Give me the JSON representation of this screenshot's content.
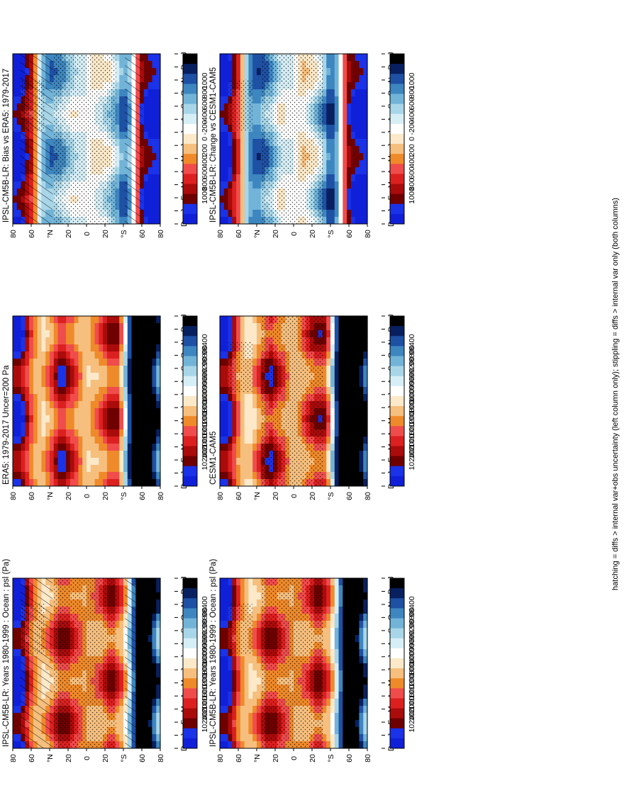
{
  "footnote": "hatching = diffs > internal var+obs uncertainty (left column only); stippling = diffs > internal var only (both columns)",
  "legend_sets": {
    "abs": {
      "labels": [
        "102400",
        "102000",
        "101600",
        "101200",
        "100800",
        "100400",
        "100000",
        "99600",
        "99200",
        "98800",
        "98400"
      ],
      "colors": [
        "#1020d8",
        "#1a32e8",
        "#6e0000",
        "#aa0b0b",
        "#dc2020",
        "#f04c4c",
        "#ef8a2a",
        "#f6bf7e",
        "#fbe9c9",
        "#ffffff",
        "#d6eef6",
        "#a8d6e8",
        "#72b4d8",
        "#3d86c0",
        "#1e50a4",
        "#082060",
        "#000000"
      ]
    },
    "diff": {
      "labels": [
        "1000",
        "800",
        "600",
        "400",
        "200",
        "0",
        "-200",
        "-400",
        "-600",
        "-800",
        "-1000"
      ],
      "colors": [
        "#1020d8",
        "#1a32e8",
        "#6e0000",
        "#aa0b0b",
        "#dc2020",
        "#f04c4c",
        "#ef8a2a",
        "#f6bf7e",
        "#fbe9c9",
        "#ffffff",
        "#d6eef6",
        "#a8d6e8",
        "#72b4d8",
        "#3d86c0",
        "#1e50a4",
        "#082060",
        "#000000"
      ]
    }
  },
  "axis": {
    "lat_ticks": [
      "80",
      "60",
      "°N",
      "20",
      "0",
      "20",
      "°S",
      "60",
      "80"
    ],
    "month_ticks": [
      "D",
      "J",
      "F",
      "M",
      "A",
      "M",
      "J",
      "J",
      "A",
      "S",
      "O",
      "N",
      "D",
      "J"
    ]
  },
  "chart_data": [
    {
      "type": "heatmap",
      "title": "IPSL-CM5B-LR: Years 1980-1999 : Ocean : psl (Pa)",
      "kind": "abs",
      "lat_profile": [
        [
          -90,
          100000
        ],
        [
          -75,
          98900
        ],
        [
          -65,
          99000
        ],
        [
          -55,
          100000
        ],
        [
          -45,
          101300
        ],
        [
          -30,
          101700
        ],
        [
          -15,
          101300
        ],
        [
          0,
          101200
        ],
        [
          15,
          101500
        ],
        [
          30,
          101800
        ],
        [
          40,
          101400
        ],
        [
          55,
          101000
        ],
        [
          65,
          101300
        ],
        [
          80,
          102400
        ],
        [
          90,
          102600
        ]
      ],
      "hatching": true,
      "stippling": true
    },
    {
      "type": "heatmap",
      "title": "IPSL-CM5B-LR: Years 1980-1999 : Ocean : psl (Pa)",
      "kind": "abs",
      "lat_profile": [
        [
          -90,
          100000
        ],
        [
          -75,
          98900
        ],
        [
          -65,
          99000
        ],
        [
          -55,
          100000
        ],
        [
          -45,
          101300
        ],
        [
          -30,
          101700
        ],
        [
          -15,
          101300
        ],
        [
          0,
          101200
        ],
        [
          15,
          101500
        ],
        [
          30,
          101800
        ],
        [
          40,
          101400
        ],
        [
          55,
          101000
        ],
        [
          65,
          101300
        ],
        [
          80,
          102400
        ],
        [
          90,
          102600
        ]
      ],
      "hatching": false,
      "stippling": true
    },
    {
      "type": "heatmap",
      "title": "ERA5: 1979-2017 Uncer=200 Pa",
      "kind": "abs",
      "lat_profile": [
        [
          -90,
          99800
        ],
        [
          -70,
          98400
        ],
        [
          -60,
          98500
        ],
        [
          -50,
          100000
        ],
        [
          -40,
          101600
        ],
        [
          -30,
          101800
        ],
        [
          -15,
          101300
        ],
        [
          0,
          101000
        ],
        [
          15,
          101500
        ],
        [
          30,
          102000
        ],
        [
          40,
          101500
        ],
        [
          55,
          101000
        ],
        [
          65,
          101300
        ],
        [
          80,
          102200
        ],
        [
          90,
          102400
        ]
      ],
      "hatching": false,
      "stippling": false
    },
    {
      "type": "heatmap",
      "title": "CESM1-CAM5",
      "kind": "abs",
      "lat_profile": [
        [
          -90,
          99700
        ],
        [
          -70,
          98300
        ],
        [
          -60,
          98400
        ],
        [
          -50,
          100000
        ],
        [
          -40,
          101700
        ],
        [
          -30,
          101800
        ],
        [
          -15,
          101400
        ],
        [
          0,
          101000
        ],
        [
          15,
          101500
        ],
        [
          30,
          101900
        ],
        [
          40,
          101500
        ],
        [
          55,
          100900
        ],
        [
          65,
          101200
        ],
        [
          80,
          102200
        ],
        [
          90,
          102400
        ]
      ],
      "hatching": false,
      "stippling": true
    },
    {
      "type": "heatmap",
      "title": "IPSL-CM5B-LR: Bias vs ERA5: 1979-2017",
      "kind": "diff",
      "lat_profile": [
        [
          -90,
          1100
        ],
        [
          -75,
          1000
        ],
        [
          -65,
          800
        ],
        [
          -55,
          -100
        ],
        [
          -45,
          -300
        ],
        [
          -35,
          -50
        ],
        [
          -25,
          100
        ],
        [
          -10,
          200
        ],
        [
          0,
          100
        ],
        [
          15,
          100
        ],
        [
          30,
          -100
        ],
        [
          45,
          -200
        ],
        [
          55,
          -100
        ],
        [
          65,
          600
        ],
        [
          80,
          1000
        ],
        [
          90,
          1100
        ]
      ],
      "hatching": true,
      "stippling": true
    },
    {
      "type": "heatmap",
      "title": "IPSL-CM5B-LR: Change vs CESM1-CAM5",
      "kind": "diff",
      "lat_profile": [
        [
          -90,
          1100
        ],
        [
          -75,
          1000
        ],
        [
          -65,
          800
        ],
        [
          -55,
          -100
        ],
        [
          -45,
          -400
        ],
        [
          -35,
          -100
        ],
        [
          -25,
          100
        ],
        [
          -10,
          250
        ],
        [
          0,
          100
        ],
        [
          15,
          150
        ],
        [
          30,
          -150
        ],
        [
          45,
          -300
        ],
        [
          55,
          -200
        ],
        [
          65,
          500
        ],
        [
          80,
          1000
        ],
        [
          90,
          1100
        ]
      ],
      "hatching": false,
      "stippling": true
    }
  ]
}
